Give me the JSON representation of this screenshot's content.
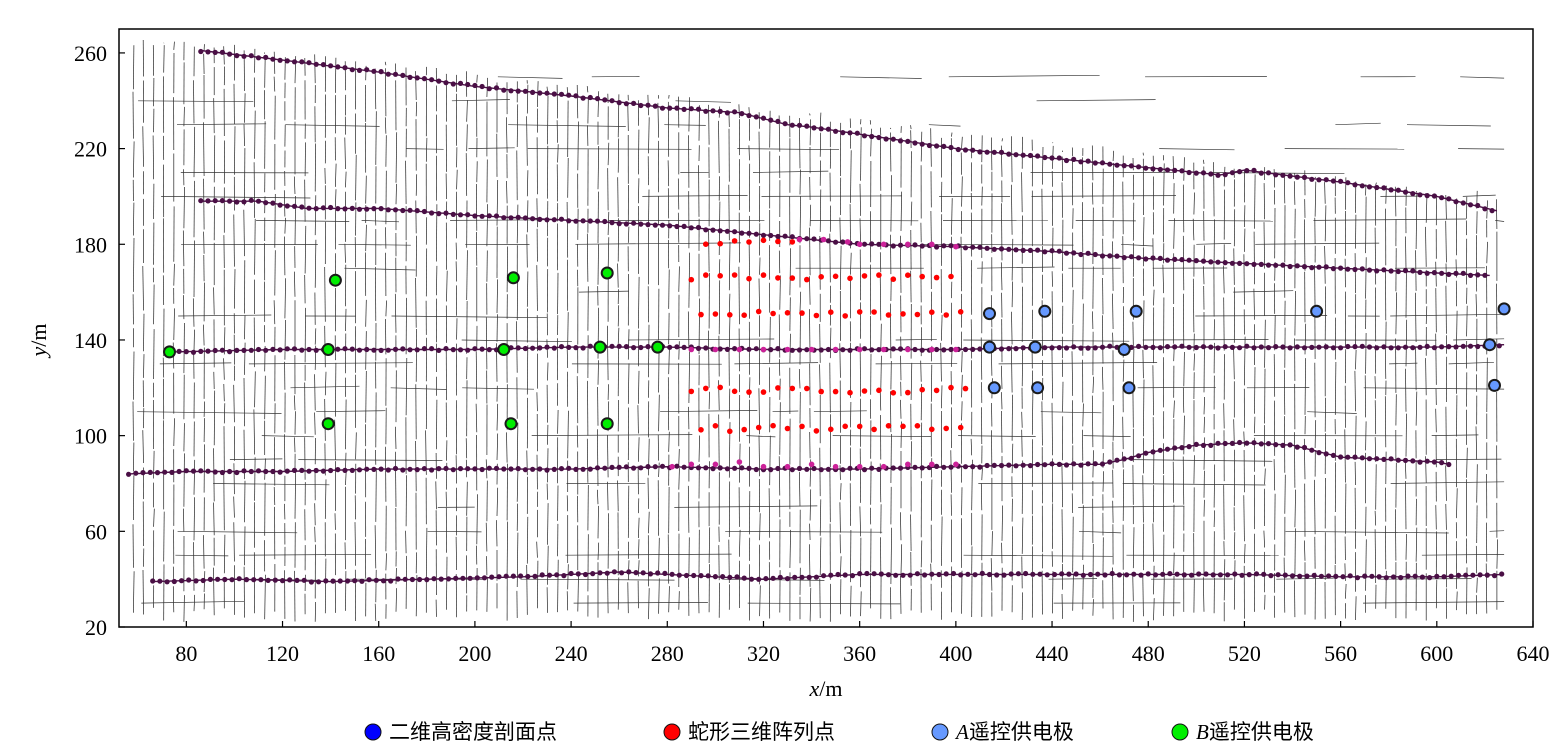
{
  "chart_data": {
    "type": "scatter",
    "xlabel_var": "x",
    "xlabel_unit": "/m",
    "ylabel_var": "y",
    "ylabel_unit": "/m",
    "xlim": [
      52,
      640
    ],
    "ylim": [
      20,
      270
    ],
    "xticks": [
      80,
      120,
      160,
      200,
      240,
      280,
      320,
      360,
      400,
      440,
      480,
      520,
      560,
      600,
      640
    ],
    "yticks": [
      20,
      60,
      100,
      140,
      180,
      220,
      260
    ],
    "grid": false,
    "legend_position": "bottom",
    "background_traces": "dense grid of short black survey lines (vertical and horizontal segments)",
    "legend": [
      {
        "label": "二维高密度剖面点",
        "italic_prefix": "",
        "color": "#0000ff",
        "marker": "circle"
      },
      {
        "label": "蛇形三维阵列点",
        "italic_prefix": "",
        "color": "#ff0000",
        "marker": "circle"
      },
      {
        "label": "遥控供电极",
        "italic_prefix": "A",
        "color": "#6699ff",
        "marker": "circle-outlined"
      },
      {
        "label": "遥控供电极",
        "italic_prefix": "B",
        "color": "#00ee00",
        "marker": "circle-outlined"
      }
    ],
    "series": [
      {
        "kind": "profile_line",
        "color": "#4a0f45",
        "line_color": "#4a0f45",
        "points": [
          [
            86,
            261
          ],
          [
            120,
            257
          ],
          [
            160,
            252
          ],
          [
            200,
            246
          ],
          [
            240,
            242
          ],
          [
            280,
            237
          ],
          [
            310,
            235
          ],
          [
            330,
            230
          ],
          [
            340,
            229
          ],
          [
            360,
            226
          ],
          [
            400,
            220
          ],
          [
            440,
            216
          ],
          [
            480,
            212
          ],
          [
            510,
            209
          ],
          [
            520,
            211
          ],
          [
            560,
            206
          ],
          [
            600,
            200
          ],
          [
            625,
            194
          ]
        ]
      },
      {
        "kind": "profile_line",
        "color": "#4a0f45",
        "line_color": "#4a0f45",
        "points": [
          [
            86,
            198
          ],
          [
            110,
            198
          ],
          [
            130,
            195
          ],
          [
            160,
            195
          ],
          [
            200,
            192
          ],
          [
            240,
            190
          ],
          [
            280,
            188
          ],
          [
            310,
            185
          ],
          [
            340,
            182
          ],
          [
            360,
            180
          ],
          [
            400,
            179
          ],
          [
            440,
            177
          ],
          [
            480,
            174
          ],
          [
            520,
            172
          ],
          [
            560,
            170
          ],
          [
            600,
            168
          ],
          [
            622,
            167
          ]
        ]
      },
      {
        "kind": "profile_line",
        "color": "#4a0f45",
        "line_color": "#4a0f45",
        "points": [
          [
            74,
            135
          ],
          [
            120,
            136
          ],
          [
            160,
            136
          ],
          [
            200,
            136
          ],
          [
            240,
            137
          ],
          [
            280,
            137
          ],
          [
            320,
            136
          ],
          [
            360,
            136
          ],
          [
            400,
            136
          ],
          [
            440,
            137
          ],
          [
            480,
            137
          ],
          [
            520,
            137
          ],
          [
            560,
            137
          ],
          [
            600,
            137
          ],
          [
            628,
            138
          ]
        ]
      },
      {
        "kind": "profile_line",
        "color": "#4a0f45",
        "line_color": "#4a0f45",
        "points": [
          [
            56,
            84
          ],
          [
            80,
            85
          ],
          [
            120,
            85
          ],
          [
            160,
            86
          ],
          [
            200,
            86
          ],
          [
            240,
            86
          ],
          [
            280,
            87
          ],
          [
            320,
            86
          ],
          [
            360,
            86
          ],
          [
            400,
            87
          ],
          [
            440,
            88
          ],
          [
            460,
            88
          ],
          [
            470,
            90
          ],
          [
            480,
            93
          ],
          [
            500,
            96
          ],
          [
            520,
            97
          ],
          [
            540,
            96
          ],
          [
            560,
            91
          ],
          [
            580,
            90
          ],
          [
            600,
            89
          ],
          [
            605,
            88
          ]
        ]
      },
      {
        "kind": "profile_line",
        "color": "#4a0f45",
        "line_color": "#4a0f45",
        "points": [
          [
            66,
            39
          ],
          [
            100,
            40
          ],
          [
            140,
            39
          ],
          [
            180,
            40
          ],
          [
            220,
            41
          ],
          [
            240,
            42
          ],
          [
            260,
            43
          ],
          [
            280,
            42
          ],
          [
            320,
            40
          ],
          [
            360,
            42
          ],
          [
            400,
            42
          ],
          [
            440,
            42
          ],
          [
            480,
            42
          ],
          [
            520,
            42
          ],
          [
            560,
            41
          ],
          [
            600,
            41
          ],
          [
            628,
            42
          ]
        ]
      },
      {
        "kind": "magenta_overlay",
        "color": "#cc2299",
        "points": [
          [
            282,
            87
          ],
          [
            290,
            88
          ],
          [
            300,
            88
          ],
          [
            310,
            89
          ],
          [
            320,
            87
          ],
          [
            330,
            87
          ],
          [
            340,
            88
          ],
          [
            350,
            87
          ],
          [
            360,
            87
          ],
          [
            370,
            87
          ],
          [
            380,
            88
          ],
          [
            390,
            88
          ],
          [
            400,
            88
          ],
          [
            335,
            182
          ],
          [
            345,
            182
          ],
          [
            355,
            181
          ],
          [
            360,
            180
          ],
          [
            370,
            180
          ],
          [
            380,
            180
          ],
          [
            390,
            180
          ],
          [
            400,
            179
          ],
          [
            290,
            136
          ],
          [
            300,
            136
          ],
          [
            310,
            136
          ],
          [
            320,
            136
          ],
          [
            330,
            136
          ],
          [
            340,
            136
          ],
          [
            350,
            136
          ],
          [
            360,
            136
          ],
          [
            370,
            136
          ],
          [
            380,
            136
          ],
          [
            390,
            136
          ],
          [
            400,
            136
          ]
        ]
      },
      {
        "kind": "snake_3d_array",
        "color": "#ff0000",
        "rows": [
          {
            "y": 181,
            "x_start": 296,
            "x_end": 335
          },
          {
            "y": 166,
            "x_start": 290,
            "x_end": 403
          },
          {
            "y": 151,
            "x_start": 294,
            "x_end": 405
          },
          {
            "y": 119,
            "x_start": 290,
            "x_end": 405
          },
          {
            "y": 103,
            "x_start": 294,
            "x_end": 402
          }
        ]
      },
      {
        "kind": "A_electrodes",
        "color": "#6699ff",
        "points": [
          [
            414,
            151
          ],
          [
            437,
            152
          ],
          [
            475,
            152
          ],
          [
            550,
            152
          ],
          [
            628,
            153
          ],
          [
            414,
            137
          ],
          [
            433,
            137
          ],
          [
            470,
            136
          ],
          [
            622,
            138
          ],
          [
            416,
            120
          ],
          [
            434,
            120
          ],
          [
            472,
            120
          ],
          [
            624,
            121
          ]
        ]
      },
      {
        "kind": "B_electrodes",
        "color": "#00ee00",
        "points": [
          [
            142,
            165
          ],
          [
            216,
            166
          ],
          [
            255,
            168
          ],
          [
            73,
            135
          ],
          [
            139,
            136
          ],
          [
            212,
            136
          ],
          [
            252,
            137
          ],
          [
            276,
            137
          ],
          [
            139,
            105
          ],
          [
            215,
            105
          ],
          [
            255,
            105
          ]
        ]
      }
    ]
  }
}
